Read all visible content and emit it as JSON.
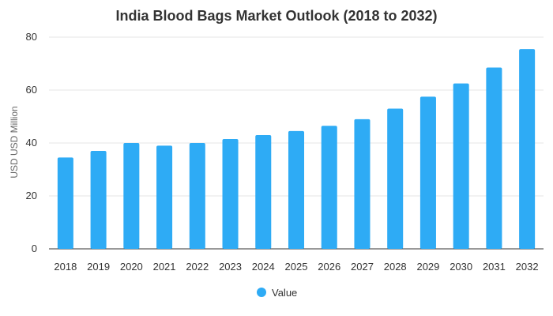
{
  "chart_data": {
    "type": "bar",
    "title": "India Blood Bags Market Outlook (2018 to 2032)",
    "xlabel": "",
    "ylabel": "USD USD Million",
    "categories": [
      "2018",
      "2019",
      "2020",
      "2021",
      "2022",
      "2023",
      "2024",
      "2025",
      "2026",
      "2027",
      "2028",
      "2029",
      "2030",
      "2031",
      "2032"
    ],
    "series": [
      {
        "name": "Value",
        "values": [
          34.5,
          37,
          40,
          39,
          40,
          41.5,
          43,
          44.5,
          46.5,
          49,
          53,
          57.5,
          62.5,
          68.5,
          75.5
        ]
      }
    ],
    "ylim": [
      0,
      80
    ],
    "yticks": [
      0,
      20,
      40,
      60,
      80
    ],
    "grid": true,
    "legend": "bottom",
    "colors": {
      "bar": "#2eabf5",
      "grid": "#e6e6e6",
      "axis": "#333333"
    }
  }
}
